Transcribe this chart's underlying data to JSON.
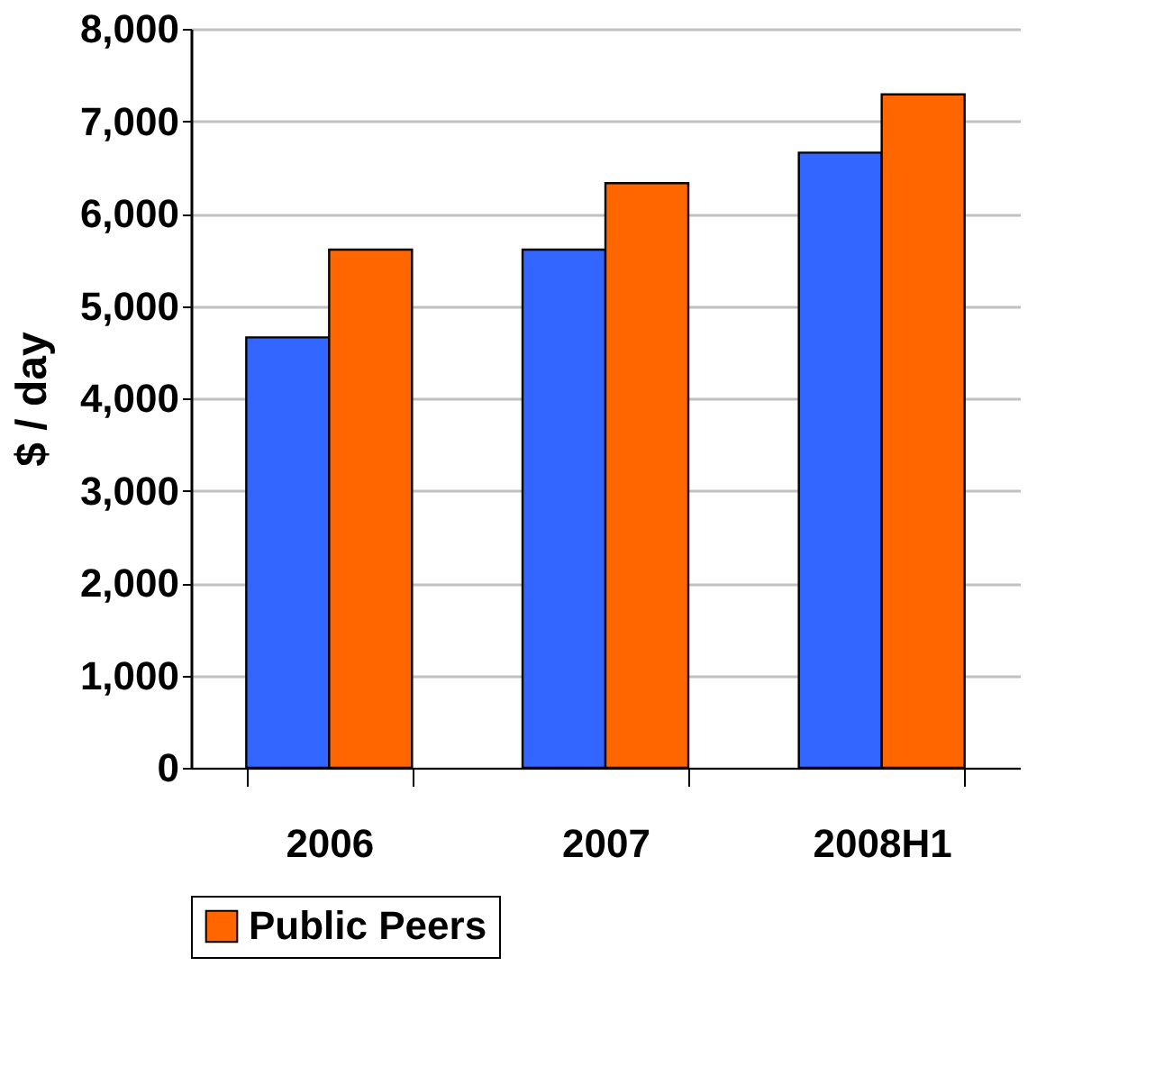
{
  "chart_data": {
    "type": "bar",
    "ylabel": "$ / day",
    "categories": [
      "2006",
      "2007",
      "2008H1"
    ],
    "series": [
      {
        "color": "#3366ff",
        "values": [
          4660,
          5610,
          6660
        ]
      },
      {
        "name": "Public Peers",
        "color": "#ff6600",
        "values": [
          5610,
          6330,
          7290
        ]
      }
    ],
    "ylim": [
      0,
      8000
    ],
    "yticks": [
      0,
      {
        "value": 1000,
        "label": "1,000"
      },
      {
        "value": 2000,
        "label": "2,000"
      },
      {
        "value": 3000,
        "label": "3,000"
      },
      {
        "value": 4000,
        "label": "4,000"
      },
      {
        "value": 5000,
        "label": "5,000"
      },
      {
        "value": 6000,
        "label": "6,000"
      },
      {
        "value": 7000,
        "label": "7,000"
      },
      {
        "value": 8000,
        "label": "8,000"
      }
    ],
    "grid": "y",
    "legend": "bottom"
  }
}
